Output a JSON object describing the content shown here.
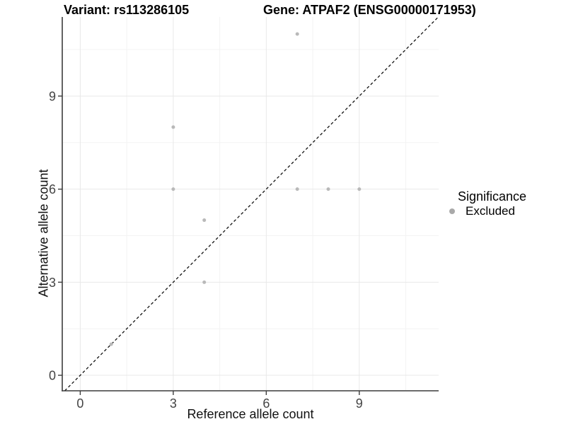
{
  "chart_data": {
    "type": "scatter",
    "title_left": "Variant: rs113286105",
    "title_right": "Gene: ATPAF2 (ENSG00000171953)",
    "xlabel": "Reference allele count",
    "ylabel": "Alternative allele count",
    "xlim": [
      -0.58,
      11.56
    ],
    "ylim": [
      -0.5,
      11.55
    ],
    "x_ticks": [
      0,
      3,
      6,
      9
    ],
    "y_ticks": [
      0,
      3,
      6,
      9
    ],
    "x_minor_ticks": [
      1.5,
      4.5,
      7.5,
      10.5
    ],
    "y_minor_ticks": [
      1.5,
      4.5,
      7.5,
      10.5
    ],
    "grid": true,
    "series": [
      {
        "name": "Excluded",
        "color": "#b9b9b9",
        "points": [
          [
            1,
            1
          ],
          [
            3,
            6
          ],
          [
            3,
            8
          ],
          [
            4,
            3
          ],
          [
            4,
            5
          ],
          [
            7,
            6
          ],
          [
            7,
            11
          ],
          [
            8,
            6
          ],
          [
            9,
            6
          ]
        ]
      }
    ],
    "reference_line": {
      "equation": "y = x",
      "style": "dashed",
      "color": "#111111"
    },
    "legend": {
      "position": "right",
      "title": "Significance",
      "items": [
        {
          "label": "Excluded",
          "color": "#a9a9a9"
        }
      ]
    },
    "colors": {
      "point": "#b9b9b9",
      "legend_key": "#a9a9a9",
      "grid_major": "#e8e8e8",
      "grid_minor": "#f3f3f3",
      "axis_line": "#3c3c3c",
      "tick_label": "#444444"
    }
  }
}
